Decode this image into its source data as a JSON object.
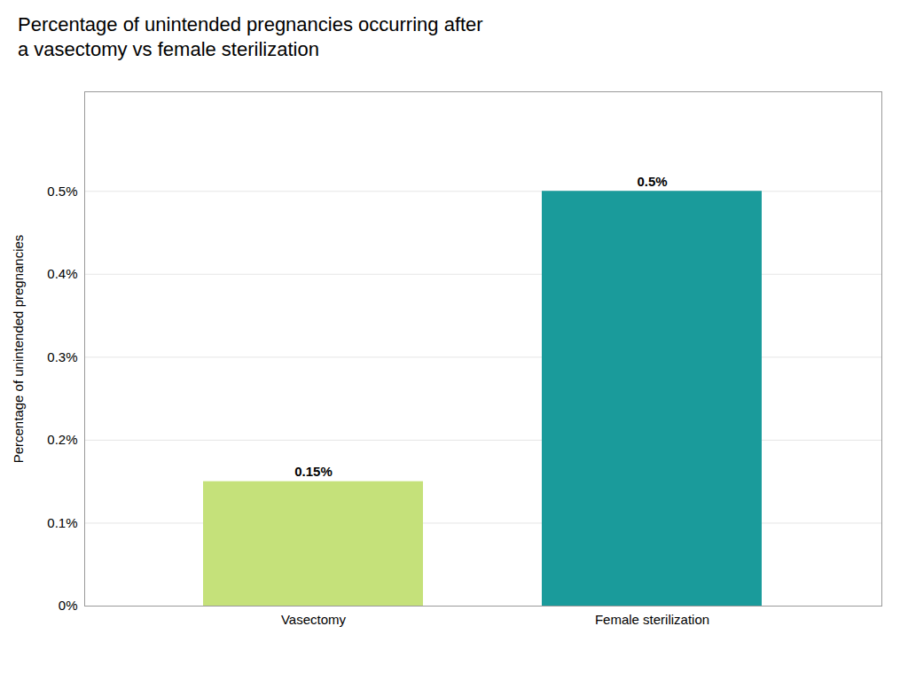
{
  "chart_data": {
    "type": "bar",
    "title": "Percentage of unintended pregnancies occurring after\na vasectomy vs female sterilization",
    "ylabel": "Percentage of unintended pregnancies",
    "categories": [
      "Vasectomy",
      "Female sterilization"
    ],
    "values": [
      0.0015,
      0.005
    ],
    "value_labels": [
      "0.15%",
      "0.5%"
    ],
    "colors": [
      "#c5e17a",
      "#1a9b9b"
    ],
    "data_labels": true,
    "ylim": [
      0,
      0.0062
    ],
    "yticks": [
      {
        "value": 0.0,
        "label": "0%"
      },
      {
        "value": 0.001,
        "label": "0.1%"
      },
      {
        "value": 0.002,
        "label": "0.2%"
      },
      {
        "value": 0.003,
        "label": "0.3%"
      },
      {
        "value": 0.004,
        "label": "0.4%"
      },
      {
        "value": 0.005,
        "label": "0.5%"
      }
    ],
    "grid": true
  }
}
